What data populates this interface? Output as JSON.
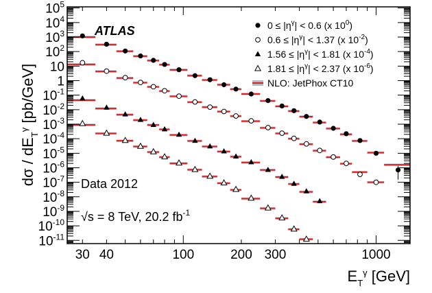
{
  "chart_data": {
    "type": "scatter",
    "experiment_label": "ATLAS",
    "xlabel": "E_T^γ [GeV]",
    "ylabel": "dσ / dE_T^γ [pb/GeV]",
    "xscale": "log",
    "yscale": "log",
    "xlim": [
      25,
      1500
    ],
    "ylim": [
      6e-12,
      120000.0
    ],
    "x_tick_labels": [
      "30",
      "40",
      "100",
      "200",
      "300",
      "1000"
    ],
    "x_tick_values": [
      30,
      40,
      100,
      200,
      300,
      1000
    ],
    "y_tick_labels": [
      {
        "value": 100000.0,
        "base": "10",
        "exp": "5"
      },
      {
        "value": 10000.0,
        "base": "10",
        "exp": "4"
      },
      {
        "value": 1000.0,
        "base": "10",
        "exp": "3"
      },
      {
        "value": 100.0,
        "base": "10",
        "exp": "2"
      },
      {
        "value": 10,
        "base": "10",
        "exp": ""
      },
      {
        "value": 1,
        "base": "1",
        "exp": ""
      },
      {
        "value": 0.1,
        "base": "10",
        "exp": "-1"
      },
      {
        "value": 0.01,
        "base": "10",
        "exp": "-2"
      },
      {
        "value": 0.001,
        "base": "10",
        "exp": "-3"
      },
      {
        "value": 0.0001,
        "base": "10",
        "exp": "-4"
      },
      {
        "value": 1e-05,
        "base": "10",
        "exp": "-5"
      },
      {
        "value": 1e-06,
        "base": "10",
        "exp": "-6"
      },
      {
        "value": 1e-07,
        "base": "10",
        "exp": "-7"
      },
      {
        "value": 1e-08,
        "base": "10",
        "exp": "-8"
      },
      {
        "value": 1e-09,
        "base": "10",
        "exp": "-9"
      },
      {
        "value": 1e-10,
        "base": "10",
        "exp": "-10"
      },
      {
        "value": 1e-11,
        "base": "10",
        "exp": "-11"
      }
    ],
    "annotations": {
      "data_label": "Data 2012",
      "energy_label": "√s = 8 TeV, 20.2 fb",
      "energy_sup": "-1"
    },
    "legend_position": "top-right",
    "legend": [
      {
        "marker": "filled-circle",
        "text": "0 ≤ |η",
        "sup1": "γ",
        "text2": "| < 0.6 (x 10",
        "sup2": "0",
        "text3": ")"
      },
      {
        "marker": "open-circle",
        "text": "0.6 ≤ |η",
        "sup1": "γ",
        "text2": "| < 1.37 (x 10",
        "sup2": "-2",
        "text3": ")"
      },
      {
        "marker": "filled-triangle",
        "text": "1.56 ≤ |η",
        "sup1": "γ",
        "text2": "| < 1.81 (x 10",
        "sup2": "-4",
        "text3": ")"
      },
      {
        "marker": "open-triangle",
        "text": "1.81 ≤ |η",
        "sup1": "γ",
        "text2": "| < 2.37 (x 10",
        "sup2": "-6",
        "text3": ")"
      },
      {
        "marker": "band",
        "text": "NLO: JetPhox CT10",
        "sup1": "",
        "text2": "",
        "sup2": "",
        "text3": ""
      }
    ],
    "bin_edges": [
      25,
      35,
      45,
      55,
      65,
      75,
      85,
      105,
      125,
      150,
      175,
      200,
      250,
      300,
      350,
      400,
      470,
      550,
      650,
      750,
      900,
      1100,
      1500
    ],
    "series": [
      {
        "name": "0 ≤ |η^γ| < 0.6 (x 10^0)",
        "marker": "filled-circle",
        "scale": 1,
        "x": [
          30,
          40,
          50,
          60,
          70,
          80,
          95,
          115,
          137.5,
          162.5,
          187.5,
          225,
          275,
          325,
          375,
          435,
          510,
          600,
          700,
          825,
          1000,
          1300
        ],
        "values": [
          1200,
          320,
          110,
          50,
          25,
          13,
          5.6,
          2.2,
          1.15,
          0.52,
          0.26,
          0.12,
          0.042,
          0.018,
          0.0085,
          0.0034,
          0.0014,
          0.00052,
          0.00022,
          7.5e-05,
          1e-05,
          7e-07
        ],
        "nlo": [
          1000,
          300,
          105,
          48,
          24,
          12.5,
          5.5,
          2.2,
          1.1,
          0.52,
          0.26,
          0.12,
          0.04,
          0.017,
          0.008,
          0.0033,
          0.0013,
          0.0005,
          0.0002,
          7e-05,
          1.1e-05,
          1.6e-06
        ]
      },
      {
        "name": "0.6 ≤ |η^γ| < 1.37 (x 10^-2)",
        "marker": "open-circle",
        "scale": 0.01,
        "x": [
          30,
          40,
          50,
          60,
          70,
          80,
          95,
          115,
          137.5,
          162.5,
          187.5,
          225,
          275,
          325,
          375,
          435,
          510,
          600,
          700,
          825,
          1000
        ],
        "values": [
          17,
          4.5,
          1.6,
          0.75,
          0.38,
          0.2,
          0.085,
          0.034,
          0.015,
          0.0075,
          0.0037,
          0.0017,
          0.00058,
          0.00024,
          0.000105,
          4.4e-05,
          1.55e-05,
          5.5e-06,
          2e-06,
          3.5e-07,
          1e-07
        ],
        "nlo": [
          13,
          4.3,
          1.5,
          0.72,
          0.37,
          0.19,
          0.083,
          0.033,
          0.015,
          0.0074,
          0.0036,
          0.0016,
          0.00056,
          0.00023,
          0.0001,
          4.2e-05,
          1.5e-05,
          5.3e-06,
          1.9e-06,
          5e-07,
          1e-07
        ]
      },
      {
        "name": "1.56 ≤ |η^γ| < 1.81 (x 10^-4)",
        "marker": "filled-triangle",
        "scale": 0.0001,
        "x": [
          30,
          40,
          50,
          60,
          70,
          80,
          95,
          115,
          137.5,
          162.5,
          187.5,
          225,
          275,
          325,
          375,
          435,
          510
        ],
        "values": [
          0.06,
          0.014,
          0.0048,
          0.002,
          0.0009,
          0.00045,
          0.00019,
          7.2e-05,
          3e-05,
          1.35e-05,
          6e-06,
          2.4e-06,
          7.2e-07,
          2.4e-07,
          8e-08,
          2.4e-08,
          5e-09
        ],
        "nlo": [
          0.045,
          0.012,
          0.0045,
          0.0019,
          0.00088,
          0.00044,
          0.00018,
          7e-05,
          2.9e-05,
          1.3e-05,
          5.8e-06,
          2.3e-06,
          7e-07,
          2.3e-07,
          7.6e-08,
          2.2e-08,
          4.6e-09
        ]
      },
      {
        "name": "1.81 ≤ |η^γ| < 2.37 (x 10^-6)",
        "marker": "open-triangle",
        "scale": 1e-06,
        "x": [
          30,
          40,
          50,
          60,
          70,
          80,
          95,
          115,
          137.5,
          162.5,
          187.5,
          225,
          275,
          325,
          375,
          435
        ],
        "values": [
          0.0011,
          0.00024,
          7.5e-05,
          3e-05,
          1.25e-05,
          5.6e-06,
          2.1e-06,
          7.5e-07,
          2.6e-07,
          9e-08,
          3.2e-08,
          8e-09,
          1.7e-09,
          3.5e-10,
          6e-11,
          1.2e-11
        ],
        "nlo": [
          0.0009,
          0.00023,
          7.2e-05,
          2.9e-05,
          1.2e-05,
          5.4e-06,
          2e-06,
          7.3e-07,
          2.5e-07,
          8.6e-08,
          3e-08,
          7.5e-09,
          1.6e-09,
          3.3e-10,
          5.8e-11,
          1.2e-11
        ]
      }
    ],
    "colors": {
      "nlo_line": "#e0201c",
      "nlo_band": "#9aa9bd",
      "marker": "#000000"
    }
  }
}
